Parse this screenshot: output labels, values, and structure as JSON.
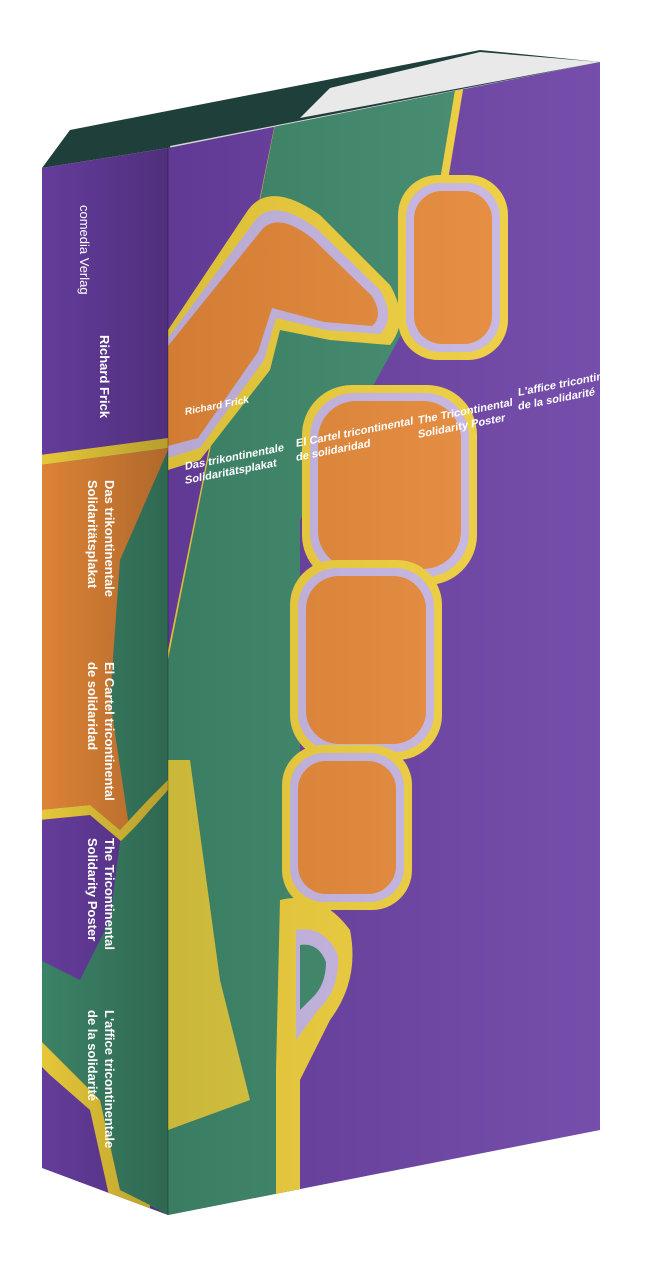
{
  "spine": {
    "publisher": "comedia Verlag",
    "author": "Richard Frick",
    "title_de_1": "Das trikontinentale",
    "title_de_2": "Solidaritätsplakat",
    "title_es_1": "El Cartel tricontinental",
    "title_es_2": "de solidaridad",
    "title_en_1": "The Tricontinental",
    "title_en_2": "Solidarity Poster",
    "title_fr_1": "L'affice tricontinentale",
    "title_fr_2": "de la solidarité"
  },
  "cover": {
    "author": "Richard Frick",
    "title_de_1": "Das trikontinentale",
    "title_de_2": "Solidaritätsplakat",
    "title_es_1": "El Cartel tricontinental",
    "title_es_2": "de solidaridad",
    "title_en_1": "The Tricontinental",
    "title_en_2": "Solidarity Poster",
    "title_fr_1": "L'affice tricontinentale",
    "title_fr_2": "de la solidarité"
  },
  "colors": {
    "purple": "#6a3fa4",
    "green": "#3f8a6c",
    "orange": "#e98a39",
    "yellow": "#f2d23c",
    "lavender": "#c9b9e6",
    "pages": "#e9e9e9",
    "spine_dark": "#1f3f3a"
  }
}
